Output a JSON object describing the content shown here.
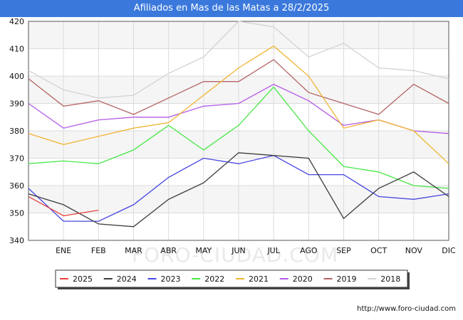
{
  "header": {
    "title": "Afiliados en Mas de las Matas a 28/2/2025"
  },
  "footer": {
    "url": "http://www.foro-ciudad.com"
  },
  "watermark": "FORO-CIUDAD.COM",
  "chart_data": {
    "type": "line",
    "title": "Afiliados en Mas de las Matas a 28/2/2025",
    "categories": [
      "",
      "ENE",
      "FEB",
      "MAR",
      "ABR",
      "MAY",
      "JUN",
      "JUL",
      "AGO",
      "SEP",
      "OCT",
      "NOV",
      "DIC"
    ],
    "ylim": [
      340,
      420
    ],
    "yticks": [
      340,
      350,
      360,
      370,
      380,
      390,
      400,
      410,
      420
    ],
    "grid": true,
    "legend_position": "bottom",
    "series": [
      {
        "name": "2025",
        "color": "#e8413c",
        "values": [
          356,
          349,
          351,
          null,
          null,
          null,
          null,
          null,
          null,
          null,
          null,
          null,
          null
        ]
      },
      {
        "name": "2024",
        "color": "#3c3c3c",
        "values": [
          357,
          353,
          346,
          345,
          355,
          361,
          372,
          371,
          370,
          348,
          359,
          365,
          356
        ]
      },
      {
        "name": "2023",
        "color": "#4646e0",
        "values": [
          359,
          347,
          347,
          353,
          363,
          370,
          368,
          371,
          364,
          364,
          356,
          355,
          357
        ]
      },
      {
        "name": "2022",
        "color": "#46e846",
        "values": [
          368,
          369,
          368,
          373,
          382,
          373,
          382,
          396,
          380,
          367,
          365,
          360,
          359
        ]
      },
      {
        "name": "2021",
        "color": "#f0b432",
        "values": [
          379,
          375,
          378,
          381,
          383,
          393,
          403,
          411,
          400,
          381,
          384,
          380,
          368
        ]
      },
      {
        "name": "2020",
        "color": "#b45ae6",
        "values": [
          390,
          381,
          384,
          385,
          385,
          389,
          390,
          397,
          391,
          382,
          384,
          380,
          379
        ]
      },
      {
        "name": "2019",
        "color": "#b46464",
        "values": [
          399,
          389,
          391,
          386,
          392,
          398,
          398,
          406,
          394,
          390,
          386,
          397,
          390
        ]
      },
      {
        "name": "2018",
        "color": "#d2d2d2",
        "values": [
          402,
          395,
          392,
          393,
          401,
          407,
          420,
          418,
          407,
          412,
          403,
          402,
          399
        ]
      }
    ]
  }
}
